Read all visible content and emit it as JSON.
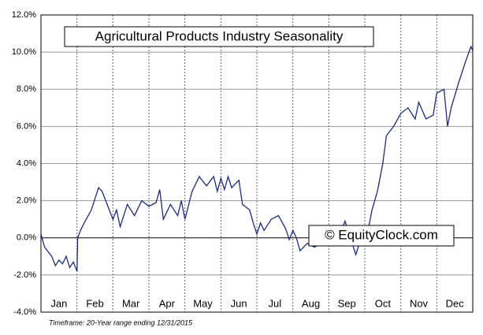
{
  "chart_data": {
    "type": "line",
    "title": "Agricultural Products Industry Seasonality",
    "watermark": "© EquityClock.com",
    "footnote": "Timeframe: 20-Year range ending 12/31/2015",
    "categories": [
      "Jan",
      "Feb",
      "Mar",
      "Apr",
      "May",
      "Jun",
      "Jul",
      "Aug",
      "Sep",
      "Oct",
      "Nov",
      "Dec"
    ],
    "xlim": [
      0,
      12
    ],
    "x": [
      0,
      0.1,
      0.3,
      0.4,
      0.5,
      0.6,
      0.7,
      0.8,
      0.9,
      1.0,
      1.02,
      1.1,
      1.2,
      1.4,
      1.6,
      1.7,
      1.8,
      2.0,
      2.1,
      2.2,
      2.4,
      2.6,
      2.8,
      3.0,
      3.2,
      3.3,
      3.4,
      3.6,
      3.8,
      3.9,
      4.0,
      4.2,
      4.4,
      4.6,
      4.8,
      4.9,
      5.0,
      5.1,
      5.2,
      5.3,
      5.5,
      5.6,
      5.8,
      5.9,
      6.0,
      6.1,
      6.2,
      6.4,
      6.6,
      6.8,
      6.9,
      7.0,
      7.1,
      7.2,
      7.4,
      7.6,
      7.8,
      8.0,
      8.3,
      8.45,
      8.6,
      8.75,
      8.9,
      9.0,
      9.1,
      9.2,
      9.35,
      9.5,
      9.6,
      9.8,
      10.0,
      10.2,
      10.4,
      10.5,
      10.7,
      10.9,
      11.0,
      11.2,
      11.3,
      11.4,
      11.6,
      11.8,
      11.95,
      12.0
    ],
    "series": [
      {
        "name": "Seasonality",
        "color": "#1f2a7a",
        "values": [
          0.2,
          -0.5,
          -1.0,
          -1.5,
          -1.2,
          -1.4,
          -1.0,
          -1.6,
          -1.3,
          -1.8,
          0.0,
          0.4,
          0.8,
          1.5,
          2.7,
          2.5,
          2.0,
          1.0,
          1.5,
          0.6,
          1.8,
          1.2,
          2.0,
          1.7,
          1.9,
          2.6,
          1.0,
          1.8,
          1.2,
          2.0,
          1.0,
          2.5,
          3.3,
          2.8,
          3.3,
          2.5,
          3.2,
          2.6,
          3.3,
          2.7,
          3.1,
          1.8,
          1.5,
          0.8,
          0.2,
          0.8,
          0.4,
          1.0,
          1.2,
          0.5,
          -0.1,
          0.4,
          0.0,
          -0.7,
          -0.3,
          -0.5,
          -0.3,
          0.0,
          0.1,
          0.9,
          0.0,
          -0.9,
          0.0,
          0.3,
          0.5,
          1.5,
          2.5,
          4.0,
          5.5,
          6.0,
          6.7,
          7.0,
          6.4,
          7.3,
          6.4,
          6.6,
          7.8,
          8.0,
          6.0,
          7.0,
          8.3,
          9.5,
          10.3,
          10.1
        ]
      }
    ],
    "ylim": [
      -4,
      12
    ],
    "yticks": [
      {
        "value": -4,
        "label": "-4.0%"
      },
      {
        "value": -2,
        "label": "-2.0%"
      },
      {
        "value": 0,
        "label": "0.0%"
      },
      {
        "value": 2,
        "label": "2.0%"
      },
      {
        "value": 4,
        "label": "4.0%"
      },
      {
        "value": 6,
        "label": "6.0%"
      },
      {
        "value": 8,
        "label": "8.0%"
      },
      {
        "value": 10,
        "label": "10.0%"
      },
      {
        "value": 12,
        "label": "12.0%"
      }
    ],
    "grid": true
  }
}
